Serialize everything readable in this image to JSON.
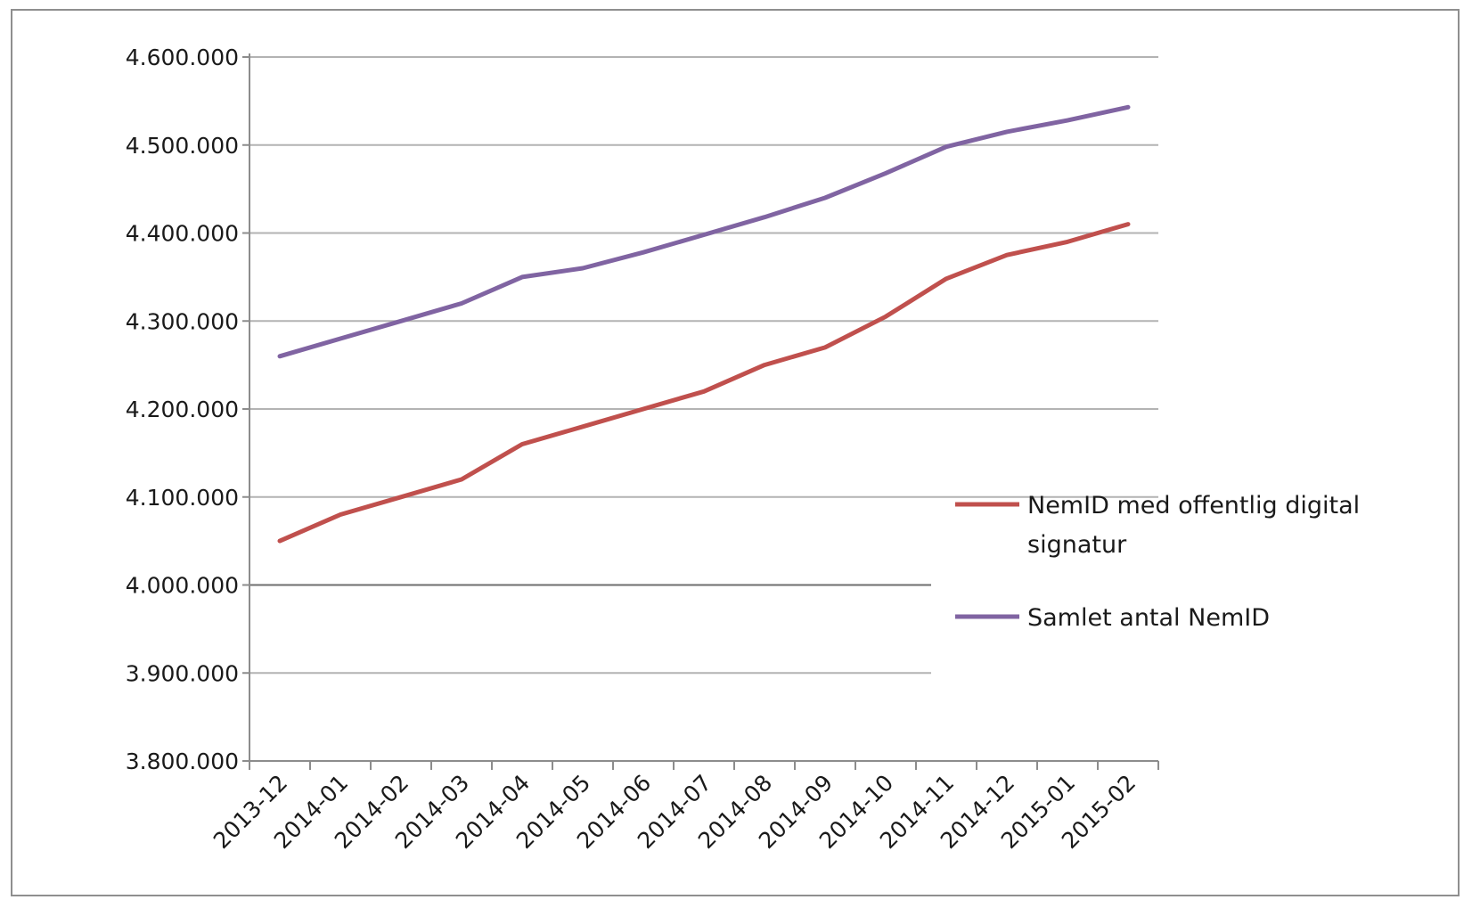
{
  "chart_data": {
    "type": "line",
    "title": "",
    "xlabel": "",
    "ylabel": "",
    "categories": [
      "2013-12",
      "2014-01",
      "2014-02",
      "2014-03",
      "2014-04",
      "2014-05",
      "2014-06",
      "2014-07",
      "2014-08",
      "2014-09",
      "2014-10",
      "2014-11",
      "2014-12",
      "2015-01",
      "2015-02"
    ],
    "ylim": [
      3800000,
      4600000
    ],
    "yticks": [
      3800000,
      3900000,
      4000000,
      4100000,
      4200000,
      4300000,
      4400000,
      4500000,
      4600000
    ],
    "ytick_labels": [
      "3.800.000",
      "3.900.000",
      "4.000.000",
      "4.100.000",
      "4.200.000",
      "4.300.000",
      "4.400.000",
      "4.500.000",
      "4.600.000"
    ],
    "grid": true,
    "legend_position": "right",
    "series": [
      {
        "name": "NemID med offentlig digital signatur",
        "name_lines": [
          "NemID med offentlig digital",
          "signatur"
        ],
        "color": "#c0504d",
        "values": [
          4050000,
          4080000,
          4100000,
          4120000,
          4160000,
          4180000,
          4200000,
          4220000,
          4250000,
          4270000,
          4305000,
          4348000,
          4375000,
          4390000,
          4410000
        ]
      },
      {
        "name": "Samlet antal NemID",
        "name_lines": [
          "Samlet antal NemID"
        ],
        "color": "#8064a2",
        "values": [
          4260000,
          4280000,
          4300000,
          4320000,
          4350000,
          4360000,
          4378000,
          4398000,
          4418000,
          4440000,
          4468000,
          4498000,
          4515000,
          4528000,
          4543000
        ]
      }
    ]
  }
}
